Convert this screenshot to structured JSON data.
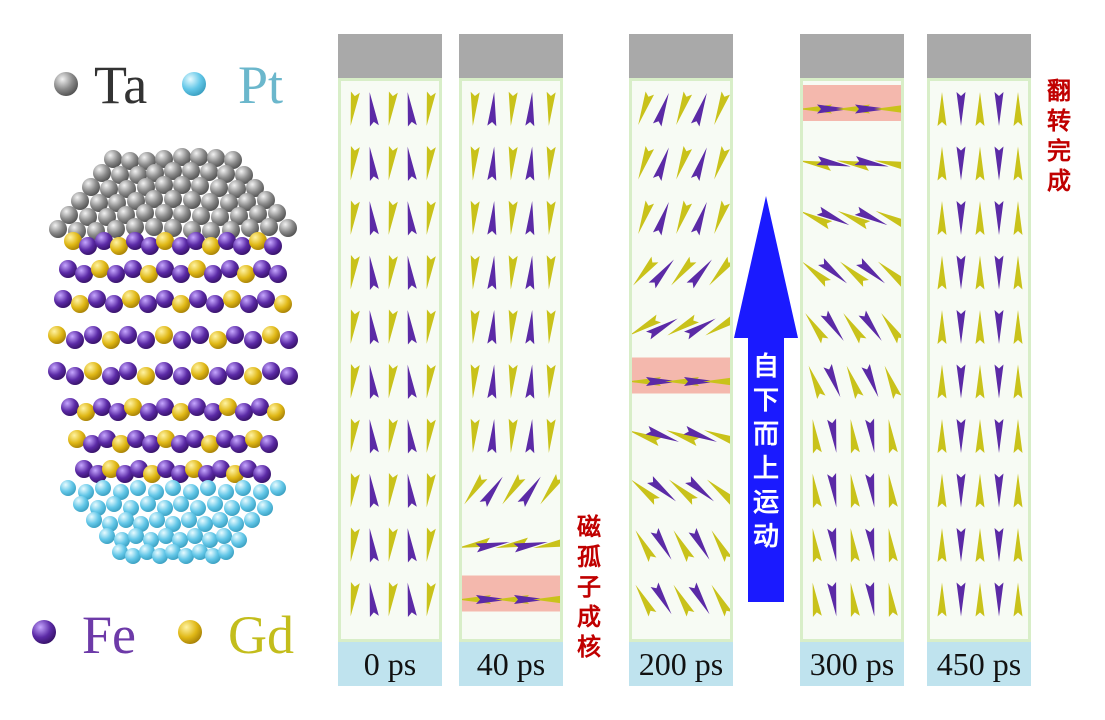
{
  "legend": {
    "ta": "Ta",
    "pt": "Pt",
    "fe": "Fe",
    "gd": "Gd"
  },
  "panels": [
    {
      "time": "0 ps"
    },
    {
      "time": "40 ps"
    },
    {
      "time": "200 ps"
    },
    {
      "time": "300 ps"
    },
    {
      "time": "450 ps"
    }
  ],
  "annotations": {
    "nucleation": "磁孤子成核",
    "bottom_up_motion": "自下而上运动",
    "switch_complete": "翻转完成"
  },
  "colors": {
    "fe_spin": "#5b2aa6",
    "gd_spin": "#c9c21a",
    "highlight": "#f4b8ad",
    "motion_arrow": "#1a1aff",
    "label_red": "#c00000"
  }
}
